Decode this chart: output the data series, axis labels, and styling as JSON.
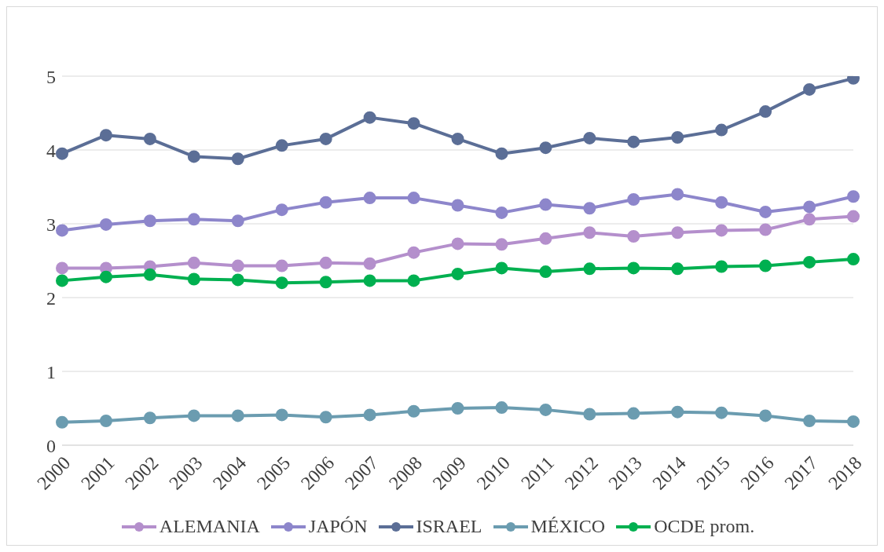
{
  "chart_data": {
    "type": "line",
    "categories": [
      "2000",
      "2001",
      "2002",
      "2003",
      "2004",
      "2005",
      "2006",
      "2007",
      "2008",
      "2009",
      "2010",
      "2011",
      "2012",
      "2013",
      "2014",
      "2015",
      "2016",
      "2017",
      "2018"
    ],
    "series": [
      {
        "name": "ALEMANIA",
        "color": "#b48fcc",
        "values": [
          2.4,
          2.4,
          2.42,
          2.47,
          2.43,
          2.43,
          2.47,
          2.46,
          2.61,
          2.73,
          2.72,
          2.8,
          2.88,
          2.83,
          2.88,
          2.91,
          2.92,
          3.06,
          3.1
        ]
      },
      {
        "name": "JAPÓN",
        "color": "#8d86cb",
        "values": [
          2.91,
          2.99,
          3.04,
          3.06,
          3.04,
          3.19,
          3.29,
          3.35,
          3.35,
          3.25,
          3.15,
          3.26,
          3.21,
          3.33,
          3.4,
          3.29,
          3.16,
          3.23,
          3.37
        ]
      },
      {
        "name": "ISRAEL",
        "color": "#5b6e96",
        "values": [
          3.95,
          4.2,
          4.15,
          3.91,
          3.88,
          4.06,
          4.15,
          4.44,
          4.36,
          4.15,
          3.95,
          4.03,
          4.16,
          4.11,
          4.17,
          4.27,
          4.52,
          4.82,
          4.97
        ]
      },
      {
        "name": "MÉXICO",
        "color": "#6b9cb0",
        "values": [
          0.31,
          0.33,
          0.37,
          0.4,
          0.4,
          0.41,
          0.38,
          0.41,
          0.46,
          0.5,
          0.51,
          0.48,
          0.42,
          0.43,
          0.45,
          0.44,
          0.4,
          0.33,
          0.32
        ]
      },
      {
        "name": "OCDE prom.",
        "color": "#00b050",
        "values": [
          2.23,
          2.28,
          2.31,
          2.25,
          2.24,
          2.2,
          2.21,
          2.23,
          2.23,
          2.32,
          2.4,
          2.35,
          2.39,
          2.4,
          2.39,
          2.42,
          2.43,
          2.48,
          2.52
        ]
      }
    ],
    "ylim": [
      0,
      5
    ],
    "yticks": [
      0,
      1,
      2,
      3,
      4,
      5
    ],
    "grid": "y",
    "legend": "bottom",
    "marker": "circle",
    "line_style": "solid"
  }
}
